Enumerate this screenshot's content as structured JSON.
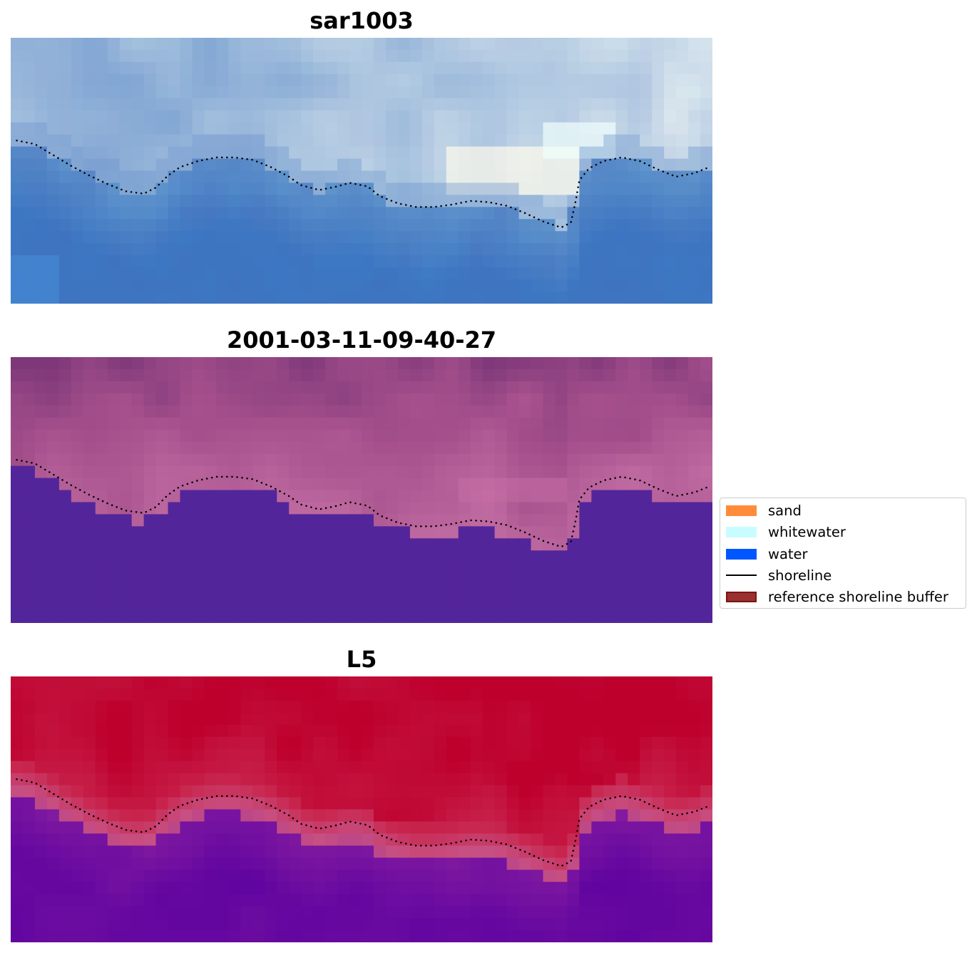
{
  "chart_data": {
    "type": "heatmap",
    "grid": {
      "cols": 58,
      "rows": 22
    },
    "legend": {
      "placement": "center-right",
      "entries": [
        {
          "label": "sand",
          "kind": "patch",
          "color": "#ff8c3a"
        },
        {
          "label": "whitewater",
          "kind": "patch",
          "color": "#c8fdff"
        },
        {
          "label": "water",
          "kind": "patch",
          "color": "#0057ff"
        },
        {
          "label": "shoreline",
          "kind": "line",
          "color": "#000000"
        },
        {
          "label": "reference shoreline buffer",
          "kind": "patch",
          "color": "#9a3030",
          "border": "#7a1515"
        }
      ]
    },
    "shoreline": {
      "style": "dotted",
      "color": "#000000",
      "points": [
        [
          0.5,
          8.5
        ],
        [
          2,
          8.8
        ],
        [
          3.5,
          9.7
        ],
        [
          5,
          10.6
        ],
        [
          6.5,
          11.4
        ],
        [
          8,
          12.1
        ],
        [
          9.5,
          12.7
        ],
        [
          11,
          12.9
        ],
        [
          12,
          12.4
        ],
        [
          13,
          11.4
        ],
        [
          14,
          10.7
        ],
        [
          15.5,
          10.2
        ],
        [
          17,
          9.9
        ],
        [
          18.5,
          9.9
        ],
        [
          20,
          10.1
        ],
        [
          21.5,
          10.7
        ],
        [
          23,
          11.5
        ],
        [
          24,
          12.2
        ],
        [
          25.5,
          12.6
        ],
        [
          27,
          12.3
        ],
        [
          28,
          12.0
        ],
        [
          29.5,
          12.3
        ],
        [
          30.5,
          13.1
        ],
        [
          32,
          13.7
        ],
        [
          33.5,
          14.0
        ],
        [
          35,
          14.0
        ],
        [
          36.5,
          13.8
        ],
        [
          38,
          13.5
        ],
        [
          39.5,
          13.6
        ],
        [
          41,
          13.9
        ],
        [
          42.5,
          14.5
        ],
        [
          44,
          15.2
        ],
        [
          45.5,
          15.7
        ],
        [
          46.3,
          15.3
        ],
        [
          46.7,
          13.5
        ],
        [
          47,
          11.8
        ],
        [
          47.8,
          10.8
        ],
        [
          49,
          10.2
        ],
        [
          50.5,
          9.9
        ],
        [
          52,
          10.2
        ],
        [
          53.5,
          10.9
        ],
        [
          55,
          11.5
        ],
        [
          56.5,
          11.2
        ],
        [
          57.5,
          10.8
        ]
      ]
    },
    "panels": [
      {
        "title": "sar1003",
        "colormap": "rgb composite"
      },
      {
        "title": "2001-03-11-09-40-27",
        "colormap": "magma",
        "classified_water_color": "#53259a"
      },
      {
        "title": "L5",
        "colormap": "plasma"
      }
    ]
  }
}
